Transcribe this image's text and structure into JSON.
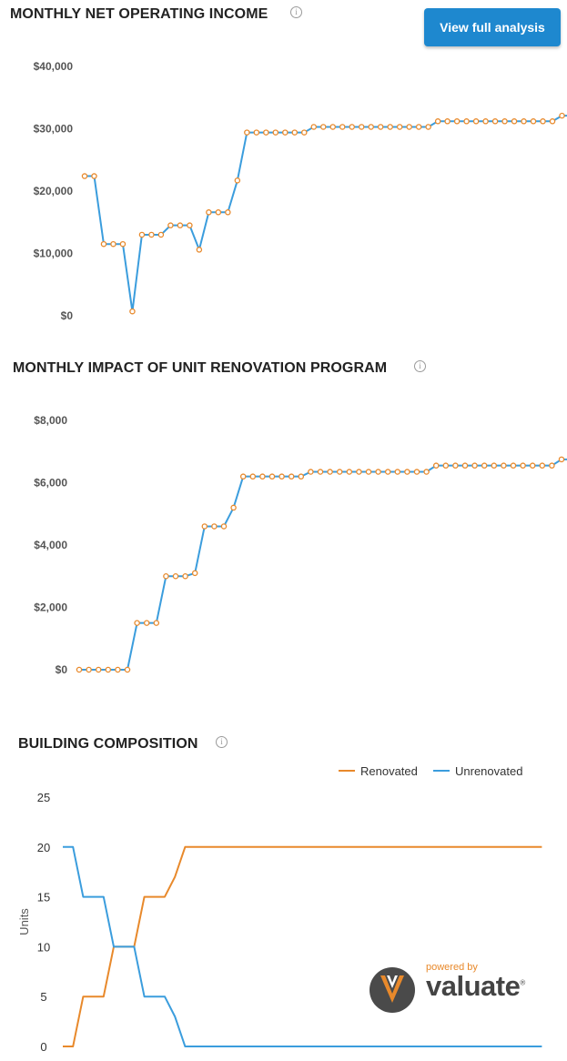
{
  "header": {
    "button_label": "View full analysis"
  },
  "colors": {
    "blue": "#3b9ddd",
    "orange": "#e8892b",
    "button": "#1e88cf"
  },
  "info_icon": "info-icon",
  "logo": {
    "powered_by": "powered by",
    "wordmark": "valuate",
    "registered": "®"
  },
  "chart_data": [
    {
      "type": "line",
      "title": "MONTHLY NET OPERATING INCOME",
      "x": [
        1,
        2,
        3,
        4,
        5,
        6,
        7,
        8,
        9,
        10,
        11,
        12,
        13,
        14,
        15,
        16,
        17,
        18,
        19,
        20,
        21,
        22,
        23,
        24,
        25,
        26,
        27,
        28,
        29,
        30,
        31,
        32,
        33,
        34,
        35,
        36,
        37,
        38,
        39,
        40,
        41,
        42,
        43,
        44,
        45,
        46,
        47,
        48,
        49,
        50,
        51,
        52,
        53,
        54
      ],
      "series": [
        {
          "values": [
            22400,
            22400,
            11500,
            11500,
            11500,
            700,
            13000,
            13000,
            13000,
            14500,
            14500,
            14500,
            10600,
            16600,
            16600,
            16600,
            21700,
            29400,
            29400,
            29400,
            29400,
            29400,
            29400,
            29400,
            30300,
            30300,
            30300,
            30300,
            30300,
            30300,
            30300,
            30300,
            30300,
            30300,
            30300,
            30300,
            30300,
            31200,
            31200,
            31200,
            31200,
            31200,
            31200,
            31200,
            31200,
            31200,
            31200,
            31200,
            31200,
            31200,
            32100,
            32100,
            32100,
            32100
          ]
        }
      ],
      "y_ticks": [
        "$40,000",
        "$30,000",
        "$20,000",
        "$10,000",
        "$0"
      ],
      "ylim": [
        0,
        40000
      ]
    },
    {
      "type": "line",
      "title": "MONTHLY IMPACT OF UNIT RENOVATION PROGRAM",
      "x": [
        1,
        2,
        3,
        4,
        5,
        6,
        7,
        8,
        9,
        10,
        11,
        12,
        13,
        14,
        15,
        16,
        17,
        18,
        19,
        20,
        21,
        22,
        23,
        24,
        25,
        26,
        27,
        28,
        29,
        30,
        31,
        32,
        33,
        34,
        35,
        36,
        37,
        38,
        39,
        40,
        41,
        42,
        43,
        44,
        45,
        46,
        47,
        48,
        49,
        50,
        51,
        52,
        53,
        54
      ],
      "series": [
        {
          "values": [
            0,
            0,
            0,
            0,
            0,
            0,
            1500,
            1500,
            1500,
            3000,
            3000,
            3000,
            3100,
            4600,
            4600,
            4600,
            5200,
            6200,
            6200,
            6200,
            6200,
            6200,
            6200,
            6200,
            6350,
            6350,
            6350,
            6350,
            6350,
            6350,
            6350,
            6350,
            6350,
            6350,
            6350,
            6350,
            6350,
            6550,
            6550,
            6550,
            6550,
            6550,
            6550,
            6550,
            6550,
            6550,
            6550,
            6550,
            6550,
            6550,
            6750,
            6750,
            6750,
            6750
          ]
        }
      ],
      "y_ticks": [
        "$8,000",
        "$6,000",
        "$4,000",
        "$2,000",
        "$0"
      ],
      "ylim": [
        0,
        8000
      ]
    },
    {
      "type": "line",
      "title": "BUILDING COMPOSITION",
      "ylabel": "Units",
      "x": [
        0,
        1,
        2,
        3,
        4,
        5,
        6,
        7,
        8,
        9,
        10,
        11,
        12,
        13,
        14,
        15,
        16,
        17,
        18,
        19,
        20,
        21,
        22,
        23,
        24,
        25,
        26,
        27,
        28,
        29,
        30,
        31,
        32,
        33,
        34,
        35,
        36,
        37,
        38,
        39,
        40,
        41,
        42,
        43,
        44,
        45,
        46,
        47
      ],
      "series": [
        {
          "name": "Renovated",
          "values": [
            0,
            0,
            5,
            5,
            5,
            10,
            10,
            10,
            15,
            15,
            15,
            17,
            20,
            20,
            20,
            20,
            20,
            20,
            20,
            20,
            20,
            20,
            20,
            20,
            20,
            20,
            20,
            20,
            20,
            20,
            20,
            20,
            20,
            20,
            20,
            20,
            20,
            20,
            20,
            20,
            20,
            20,
            20,
            20,
            20,
            20,
            20,
            20
          ]
        },
        {
          "name": "Unrenovated",
          "values": [
            20,
            20,
            15,
            15,
            15,
            10,
            10,
            10,
            5,
            5,
            5,
            3,
            0,
            0,
            0,
            0,
            0,
            0,
            0,
            0,
            0,
            0,
            0,
            0,
            0,
            0,
            0,
            0,
            0,
            0,
            0,
            0,
            0,
            0,
            0,
            0,
            0,
            0,
            0,
            0,
            0,
            0,
            0,
            0,
            0,
            0,
            0,
            0
          ]
        }
      ],
      "y_ticks": [
        "25",
        "20",
        "15",
        "10",
        "5",
        "0"
      ],
      "ylim": [
        0,
        25
      ],
      "legend": "top-right"
    }
  ]
}
